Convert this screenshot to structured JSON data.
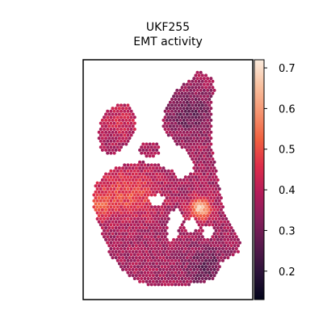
{
  "chart_data": {
    "type": "heatmap",
    "title": "UKF255",
    "subtitle": "EMT activity",
    "colorbar": {
      "min": 0.13,
      "max": 0.72,
      "ticks": [
        0.2,
        0.3,
        0.4,
        0.5,
        0.6,
        0.7
      ],
      "tick_labels": [
        "0.2",
        "0.3",
        "0.4",
        "0.5",
        "0.6",
        "0.7"
      ],
      "colormap": "rocket",
      "stops": [
        "#03051a",
        "#2b1339",
        "#571a4c",
        "#841e5a",
        "#b31c59",
        "#dd2d4a",
        "#f0603f",
        "#f5936f",
        "#f8bf9e",
        "#faebdd"
      ]
    },
    "spots": {
      "description_values_range": [
        0.13,
        0.72
      ],
      "hotspot_value": 0.68,
      "coldspot_value": 0.15
    },
    "axes": {
      "xticks": [],
      "yticks": [],
      "frame": true
    }
  }
}
